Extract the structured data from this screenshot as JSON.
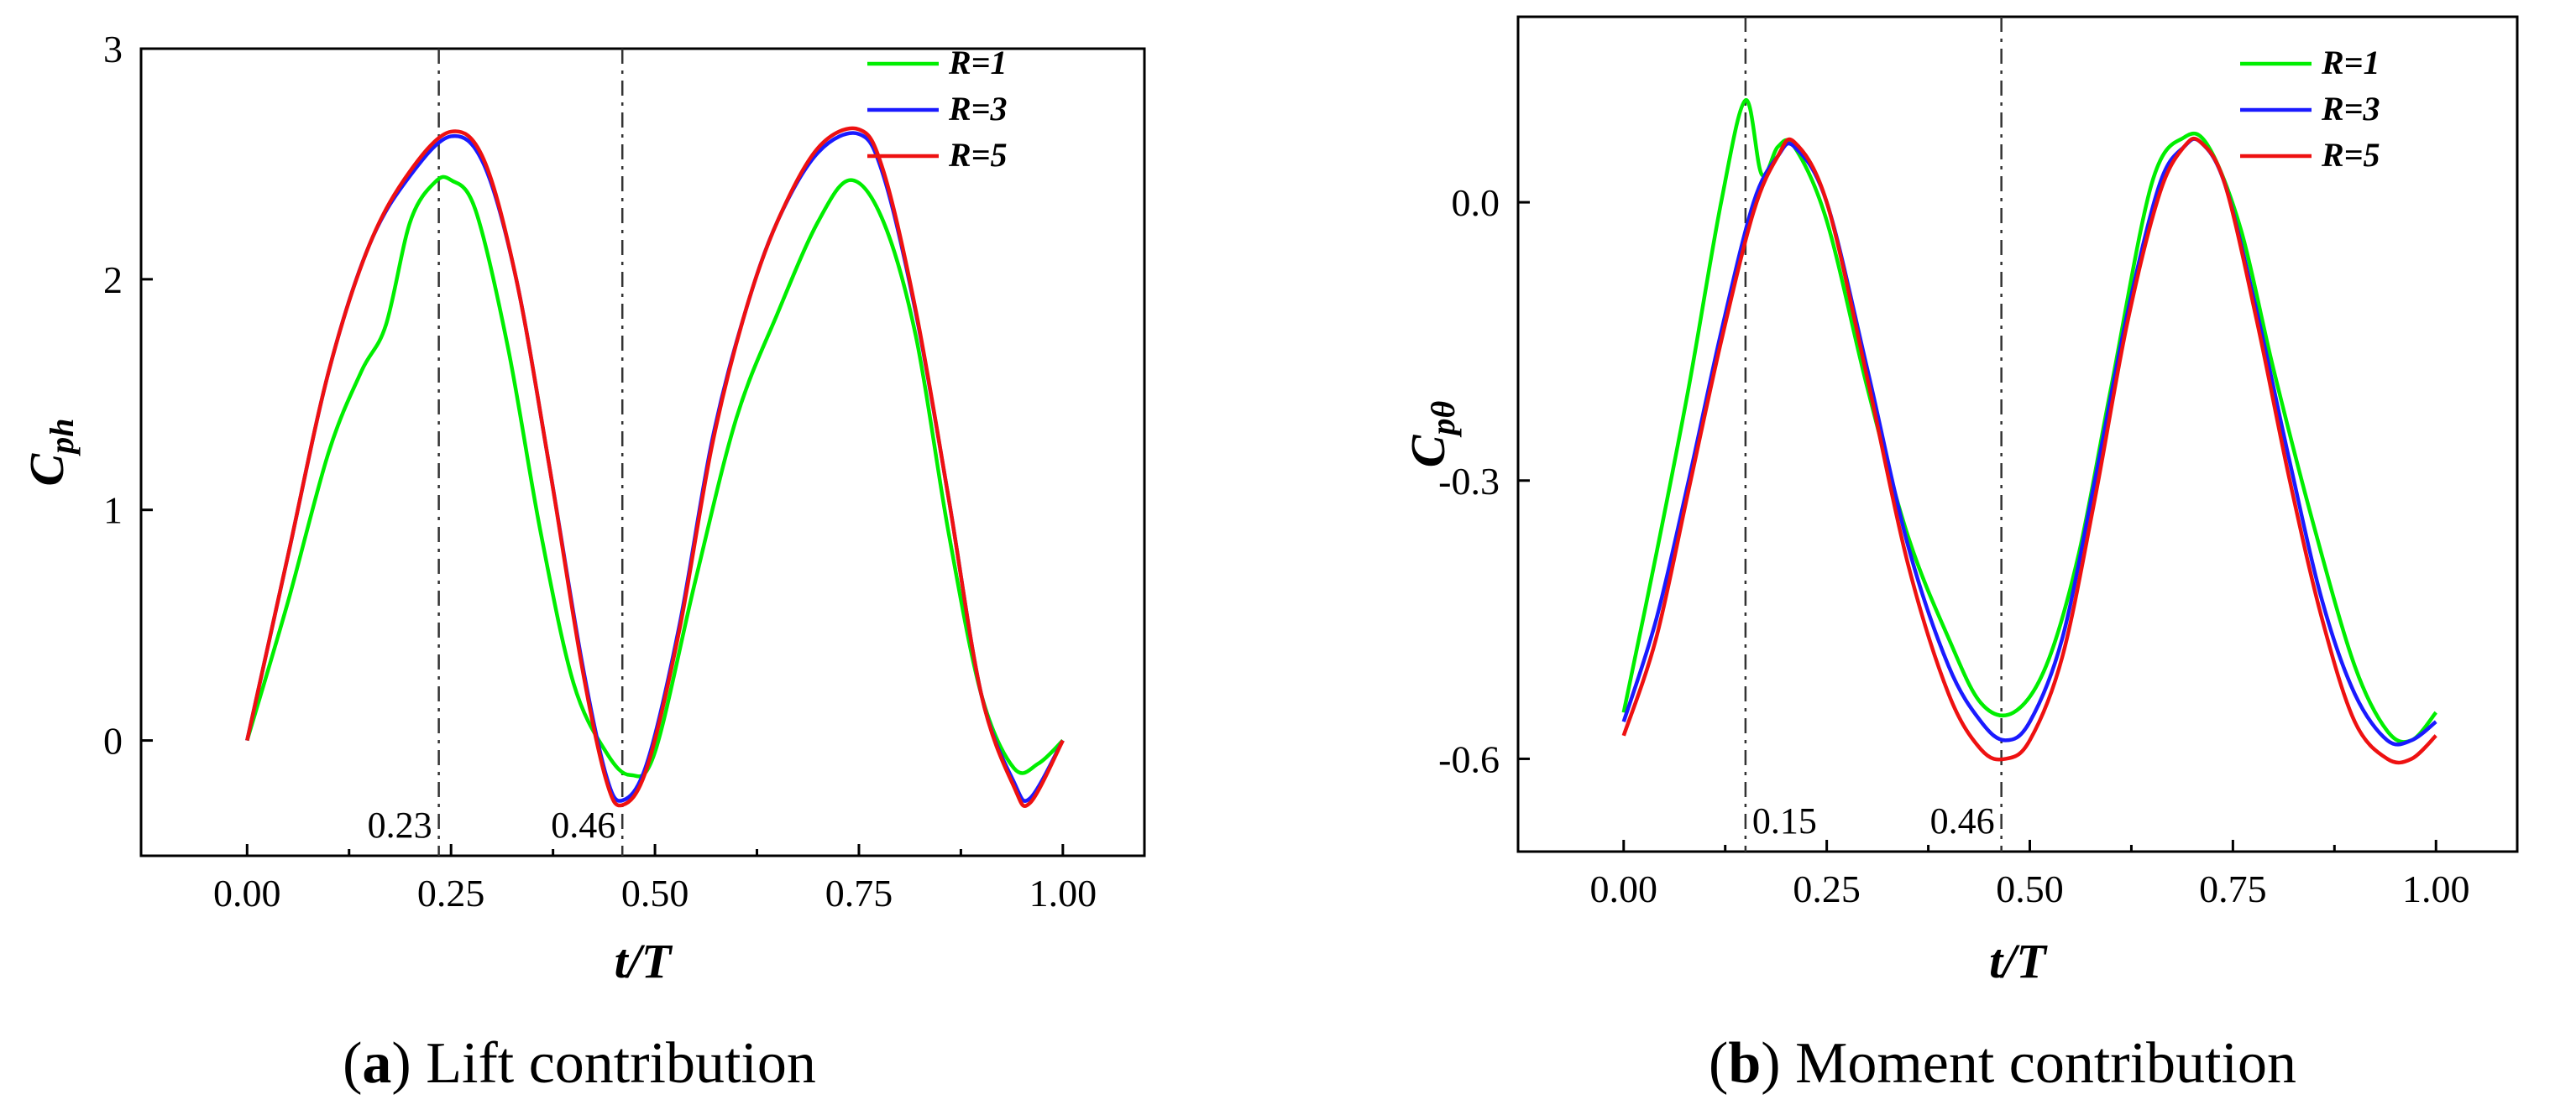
{
  "chart_data": [
    {
      "type": "line",
      "title": "",
      "caption": {
        "letter": "a",
        "text": "Lift contribution"
      },
      "xlabel": "t/T",
      "ylabel": {
        "main": "C",
        "sub": "ph"
      },
      "xlim": [
        -0.13,
        1.1
      ],
      "ylim": [
        -0.5,
        3
      ],
      "xticks": [
        0,
        0.25,
        0.5,
        0.75,
        1
      ],
      "xtick_labels": [
        "0.00",
        "0.25",
        "0.50",
        "0.75",
        "1.00"
      ],
      "yticks": [
        0,
        1,
        2,
        3
      ],
      "ytick_labels": [
        "0",
        "1",
        "2",
        "3"
      ],
      "grid": false,
      "legend_position": "top-right",
      "vlines": [
        {
          "x": 0.235,
          "label": "0.23"
        },
        {
          "x": 0.46,
          "label": "0.46"
        }
      ],
      "series": [
        {
          "name": "R=1",
          "color": "#00ee00",
          "x": [
            0,
            0.05,
            0.1,
            0.14,
            0.17,
            0.2,
            0.23,
            0.25,
            0.28,
            0.32,
            0.36,
            0.4,
            0.44,
            0.47,
            0.5,
            0.55,
            0.6,
            0.65,
            0.7,
            0.74,
            0.78,
            0.82,
            0.86,
            0.9,
            0.94,
            0.97,
            1.0
          ],
          "y": [
            0,
            0.6,
            1.25,
            1.6,
            1.8,
            2.25,
            2.42,
            2.43,
            2.3,
            1.7,
            0.9,
            0.25,
            -0.05,
            -0.15,
            -0.05,
            0.7,
            1.4,
            1.85,
            2.25,
            2.43,
            2.25,
            1.75,
            0.9,
            0.2,
            -0.12,
            -0.1,
            0
          ]
        },
        {
          "name": "R=3",
          "color": "#1a1aff",
          "x": [
            0,
            0.05,
            0.1,
            0.15,
            0.2,
            0.25,
            0.29,
            0.33,
            0.37,
            0.41,
            0.44,
            0.46,
            0.49,
            0.53,
            0.57,
            0.61,
            0.65,
            0.7,
            0.75,
            0.78,
            0.82,
            0.86,
            0.9,
            0.94,
            0.96,
            1.0
          ],
          "y": [
            0,
            0.8,
            1.6,
            2.15,
            2.45,
            2.62,
            2.5,
            2.0,
            1.2,
            0.35,
            -0.15,
            -0.26,
            -0.1,
            0.5,
            1.3,
            1.85,
            2.25,
            2.55,
            2.63,
            2.45,
            1.85,
            1.05,
            0.2,
            -0.18,
            -0.25,
            0
          ]
        },
        {
          "name": "R=5",
          "color": "#ee1111",
          "x": [
            0,
            0.05,
            0.1,
            0.15,
            0.2,
            0.25,
            0.29,
            0.33,
            0.37,
            0.41,
            0.44,
            0.46,
            0.49,
            0.53,
            0.57,
            0.61,
            0.65,
            0.7,
            0.75,
            0.78,
            0.82,
            0.86,
            0.9,
            0.94,
            0.96,
            1.0
          ],
          "y": [
            0,
            0.8,
            1.6,
            2.15,
            2.47,
            2.64,
            2.52,
            2.0,
            1.2,
            0.33,
            -0.17,
            -0.28,
            -0.12,
            0.48,
            1.28,
            1.85,
            2.25,
            2.57,
            2.65,
            2.47,
            1.86,
            1.05,
            0.2,
            -0.2,
            -0.27,
            0
          ]
        }
      ]
    },
    {
      "type": "line",
      "title": "",
      "caption": {
        "letter": "b",
        "text": "Moment contribution"
      },
      "xlabel": "t/T",
      "ylabel": {
        "main": "C",
        "sub": "pθ"
      },
      "xlim": [
        -0.13,
        1.1
      ],
      "ylim": [
        -0.7,
        0.2
      ],
      "xticks": [
        0,
        0.25,
        0.5,
        0.75,
        1
      ],
      "xtick_labels": [
        "0.00",
        "0.25",
        "0.50",
        "0.75",
        "1.00"
      ],
      "yticks": [
        0,
        -0.3,
        -0.6
      ],
      "ytick_labels": [
        "0.0",
        "-0.3",
        "-0.6"
      ],
      "grid": false,
      "legend_position": "top-right",
      "vlines": [
        {
          "x": 0.15,
          "label": "0.15"
        },
        {
          "x": 0.465,
          "label": "0.46"
        }
      ],
      "series": [
        {
          "name": "R=1",
          "color": "#00ee00",
          "x": [
            0,
            0.04,
            0.08,
            0.12,
            0.15,
            0.17,
            0.19,
            0.21,
            0.25,
            0.3,
            0.35,
            0.4,
            0.44,
            0.48,
            0.52,
            0.56,
            0.6,
            0.65,
            0.69,
            0.72,
            0.76,
            0.8,
            0.85,
            0.9,
            0.94,
            0.97,
            1.0
          ],
          "y": [
            -0.55,
            -0.38,
            -0.2,
            0.0,
            0.11,
            0.03,
            0.06,
            0.06,
            -0.02,
            -0.2,
            -0.36,
            -0.47,
            -0.54,
            -0.55,
            -0.5,
            -0.38,
            -0.2,
            0.02,
            0.07,
            0.06,
            -0.03,
            -0.18,
            -0.35,
            -0.5,
            -0.57,
            -0.58,
            -0.55
          ]
        },
        {
          "name": "R=3",
          "color": "#1a1aff",
          "x": [
            0,
            0.04,
            0.08,
            0.12,
            0.16,
            0.19,
            0.21,
            0.25,
            0.3,
            0.35,
            0.4,
            0.44,
            0.47,
            0.5,
            0.54,
            0.58,
            0.62,
            0.66,
            0.69,
            0.71,
            0.74,
            0.78,
            0.82,
            0.86,
            0.9,
            0.94,
            0.97,
            1.0
          ],
          "y": [
            -0.56,
            -0.45,
            -0.3,
            -0.14,
            0.0,
            0.05,
            0.06,
            0.0,
            -0.18,
            -0.37,
            -0.5,
            -0.56,
            -0.58,
            -0.56,
            -0.47,
            -0.3,
            -0.12,
            0.02,
            0.06,
            0.065,
            0.02,
            -0.12,
            -0.28,
            -0.43,
            -0.53,
            -0.58,
            -0.58,
            -0.56
          ]
        },
        {
          "name": "R=5",
          "color": "#ee1111",
          "x": [
            0,
            0.04,
            0.08,
            0.12,
            0.16,
            0.19,
            0.21,
            0.25,
            0.3,
            0.35,
            0.4,
            0.44,
            0.47,
            0.5,
            0.54,
            0.58,
            0.62,
            0.66,
            0.69,
            0.71,
            0.74,
            0.78,
            0.82,
            0.86,
            0.9,
            0.94,
            0.97,
            1.0
          ],
          "y": [
            -0.575,
            -0.47,
            -0.31,
            -0.15,
            -0.01,
            0.05,
            0.065,
            0.0,
            -0.19,
            -0.39,
            -0.53,
            -0.59,
            -0.6,
            -0.58,
            -0.49,
            -0.32,
            -0.13,
            0.01,
            0.06,
            0.065,
            0.02,
            -0.13,
            -0.3,
            -0.45,
            -0.56,
            -0.6,
            -0.6,
            -0.575
          ]
        }
      ]
    }
  ]
}
